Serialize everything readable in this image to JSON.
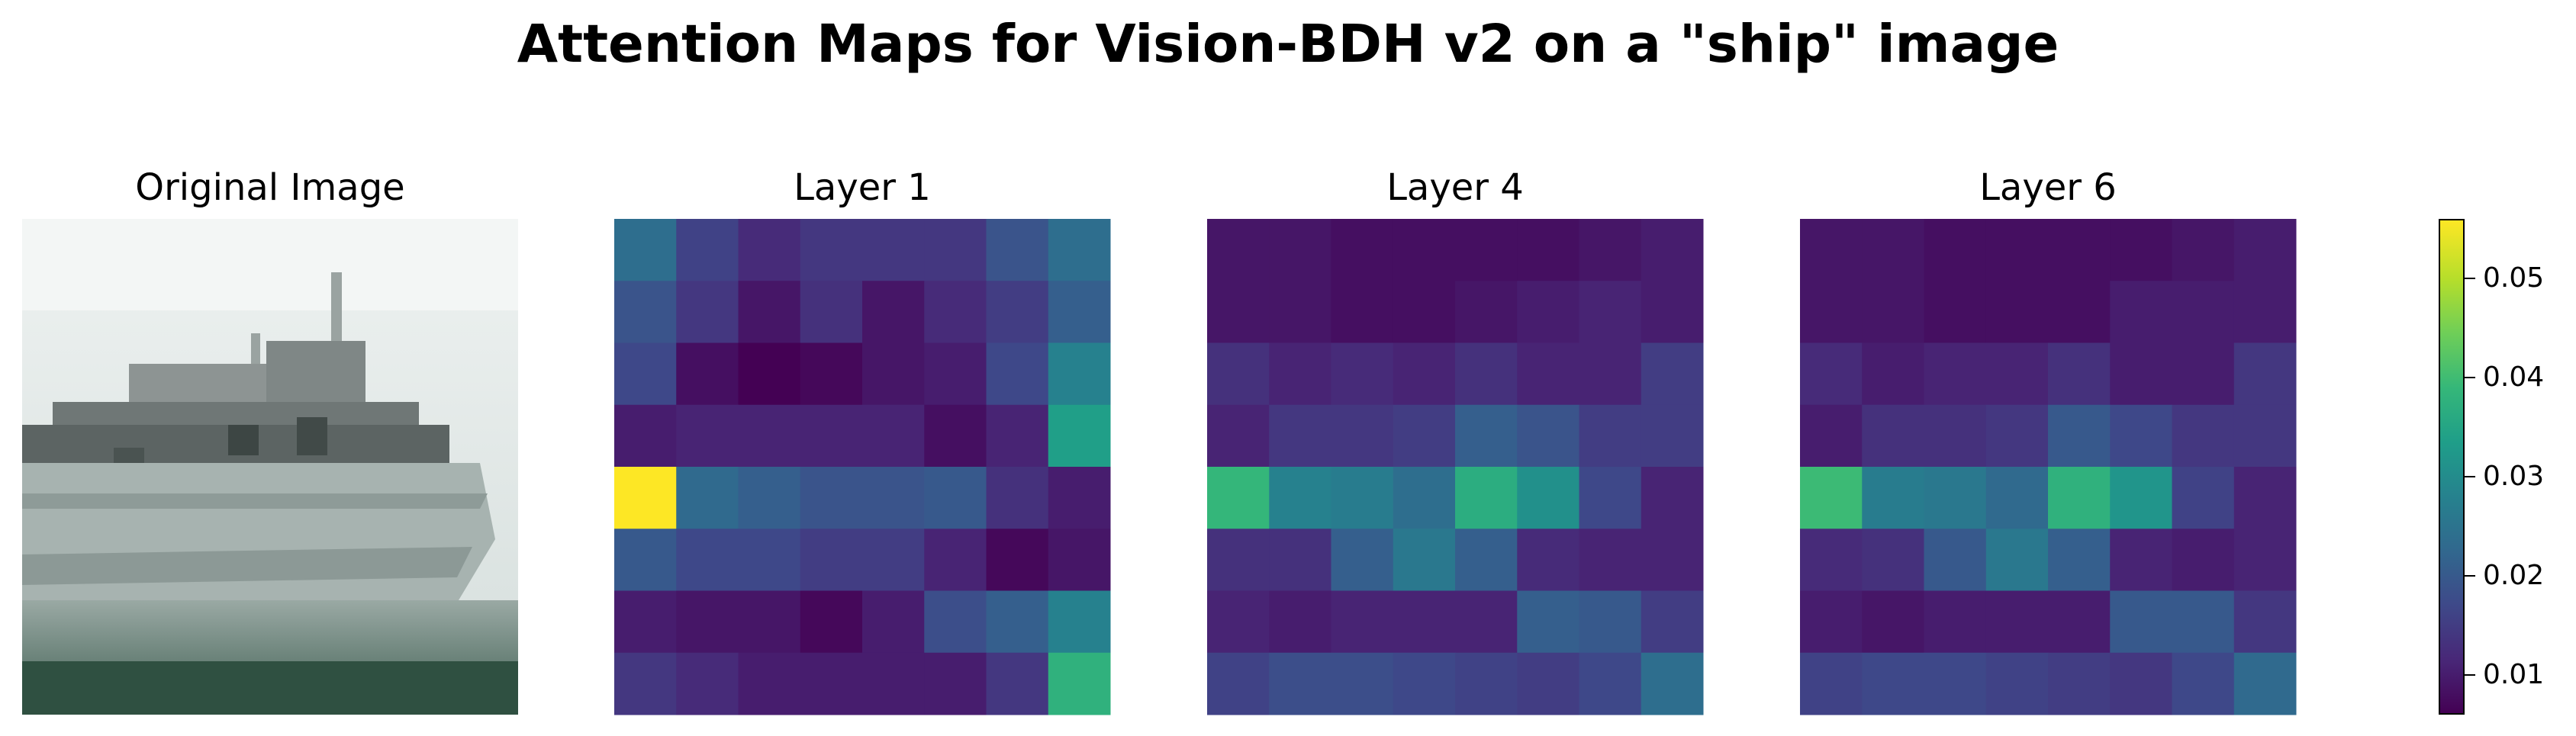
{
  "figure": {
    "title": "Attention Maps for Vision-BDH v2 on a \"ship\" image"
  },
  "panels": {
    "original": {
      "title": "Original Image"
    },
    "layer1": {
      "title": "Layer 1"
    },
    "layer4": {
      "title": "Layer 4"
    },
    "layer6": {
      "title": "Layer 6"
    }
  },
  "colorbar": {
    "colormap": "viridis",
    "range": [
      0.006,
      0.056
    ],
    "ticks": [
      0.01,
      0.02,
      0.03,
      0.04,
      0.05
    ],
    "tick_labels": [
      "0.01",
      "0.02",
      "0.03",
      "0.04",
      "0.05"
    ]
  },
  "chart_data": [
    {
      "type": "heatmap",
      "title": "Layer 1",
      "vmin": 0.006,
      "vmax": 0.056,
      "values": [
        [
          0.024,
          0.016,
          0.012,
          0.014,
          0.014,
          0.014,
          0.019,
          0.024
        ],
        [
          0.019,
          0.014,
          0.009,
          0.013,
          0.009,
          0.012,
          0.015,
          0.021
        ],
        [
          0.017,
          0.008,
          0.006,
          0.007,
          0.009,
          0.01,
          0.017,
          0.028
        ],
        [
          0.01,
          0.011,
          0.011,
          0.011,
          0.011,
          0.008,
          0.011,
          0.034
        ],
        [
          0.056,
          0.023,
          0.021,
          0.019,
          0.019,
          0.02,
          0.013,
          0.01
        ],
        [
          0.02,
          0.017,
          0.017,
          0.015,
          0.015,
          0.011,
          0.007,
          0.009
        ],
        [
          0.01,
          0.009,
          0.009,
          0.007,
          0.01,
          0.018,
          0.021,
          0.028
        ],
        [
          0.014,
          0.012,
          0.01,
          0.01,
          0.01,
          0.01,
          0.014,
          0.038
        ]
      ]
    },
    {
      "type": "heatmap",
      "title": "Layer 4",
      "vmin": 0.006,
      "vmax": 0.056,
      "values": [
        [
          0.009,
          0.009,
          0.008,
          0.008,
          0.008,
          0.008,
          0.009,
          0.01
        ],
        [
          0.009,
          0.009,
          0.008,
          0.008,
          0.009,
          0.01,
          0.011,
          0.01
        ],
        [
          0.013,
          0.011,
          0.012,
          0.011,
          0.013,
          0.011,
          0.011,
          0.015
        ],
        [
          0.011,
          0.014,
          0.014,
          0.015,
          0.021,
          0.019,
          0.015,
          0.015
        ],
        [
          0.039,
          0.028,
          0.027,
          0.024,
          0.037,
          0.031,
          0.017,
          0.011
        ],
        [
          0.013,
          0.013,
          0.021,
          0.026,
          0.021,
          0.012,
          0.011,
          0.011
        ],
        [
          0.011,
          0.01,
          0.011,
          0.011,
          0.011,
          0.021,
          0.02,
          0.015
        ],
        [
          0.016,
          0.018,
          0.018,
          0.017,
          0.016,
          0.015,
          0.017,
          0.024
        ]
      ]
    },
    {
      "type": "heatmap",
      "title": "Layer 6",
      "vmin": 0.006,
      "vmax": 0.056,
      "values": [
        [
          0.009,
          0.009,
          0.008,
          0.008,
          0.008,
          0.008,
          0.009,
          0.01
        ],
        [
          0.009,
          0.009,
          0.008,
          0.008,
          0.008,
          0.01,
          0.01,
          0.01
        ],
        [
          0.012,
          0.01,
          0.011,
          0.011,
          0.013,
          0.01,
          0.01,
          0.014
        ],
        [
          0.01,
          0.013,
          0.013,
          0.014,
          0.02,
          0.017,
          0.014,
          0.014
        ],
        [
          0.04,
          0.027,
          0.026,
          0.023,
          0.038,
          0.032,
          0.016,
          0.011
        ],
        [
          0.012,
          0.013,
          0.02,
          0.026,
          0.021,
          0.011,
          0.01,
          0.011
        ],
        [
          0.01,
          0.009,
          0.01,
          0.01,
          0.01,
          0.02,
          0.02,
          0.014
        ],
        [
          0.016,
          0.017,
          0.017,
          0.016,
          0.015,
          0.014,
          0.017,
          0.023
        ]
      ]
    }
  ]
}
